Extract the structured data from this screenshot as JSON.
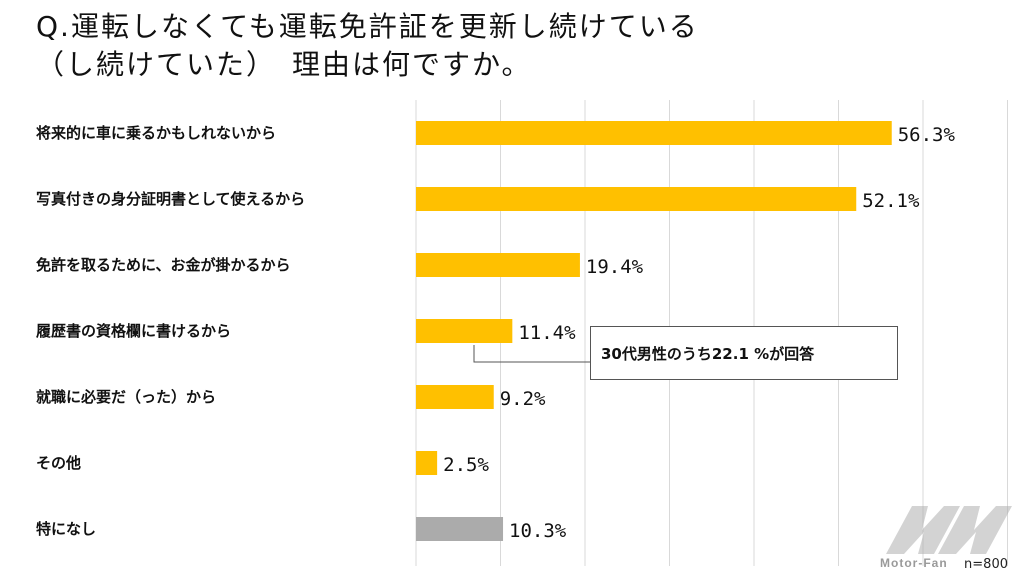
{
  "title": {
    "line1": "Q.運転しなくても運転免許証を更新し続けている",
    "line2": "（し続けていた）　理由は何ですか。"
  },
  "chart_data": {
    "type": "bar",
    "orientation": "horizontal",
    "categories": [
      "将来的に車に乗るかもしれないから",
      "写真付きの身分証明書として使えるから",
      "免許を取るために、お金が掛かるから",
      "履歴書の資格欄に書けるから",
      "就職に必要だ（った）から",
      "その他",
      "特になし"
    ],
    "values": [
      56.3,
      52.1,
      19.4,
      11.4,
      9.2,
      2.5,
      10.3
    ],
    "value_labels": [
      "56.3%",
      "52.1%",
      "19.4%",
      "11.4%",
      "9.2%",
      "2.5%",
      "10.3%"
    ],
    "xlim": [
      0,
      70
    ],
    "grid": true,
    "annotation": "30代男性のうち22.1 %が回答",
    "sample_size": "n=800"
  },
  "colors": {
    "bar": "#FFC000",
    "bar_other": "#ABABAB",
    "grid": "#D9D9D9"
  },
  "watermark": {
    "text": "Motor-Fan"
  }
}
